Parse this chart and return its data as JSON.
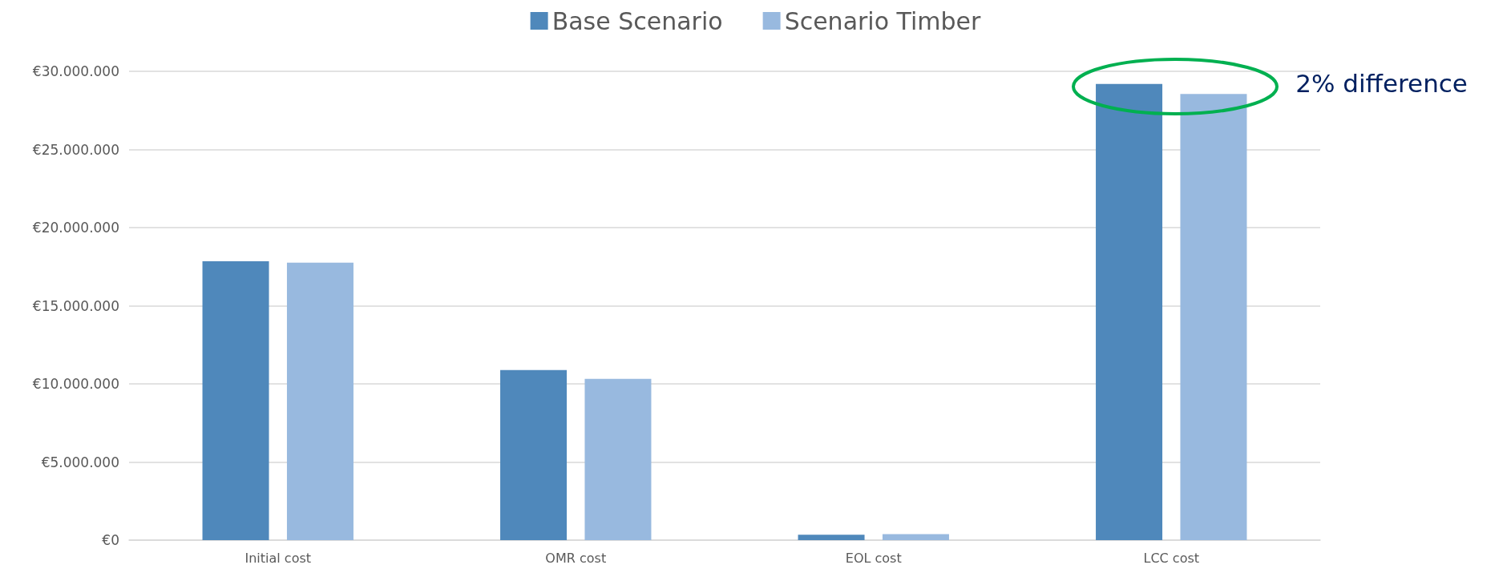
{
  "chart_data": {
    "type": "bar",
    "categories": [
      "Initial cost",
      "OMR cost",
      "EOL cost",
      "LCC cost"
    ],
    "series": [
      {
        "name": "Base Scenario",
        "color": "#4f88bb",
        "values": [
          17850000,
          10880000,
          350000,
          29190000
        ]
      },
      {
        "name": "Scenario Timber",
        "color": "#98b9df",
        "values": [
          17760000,
          10320000,
          390000,
          28550000
        ]
      }
    ],
    "ylim": [
      0,
      30000000
    ],
    "yticks": [
      {
        "value": 0,
        "label": "€0"
      },
      {
        "value": 5000000,
        "label": "€5.000.000"
      },
      {
        "value": 10000000,
        "label": "€10.000.000"
      },
      {
        "value": 15000000,
        "label": "€15.000.000"
      },
      {
        "value": 20000000,
        "label": "€20.000.000"
      },
      {
        "value": 25000000,
        "label": "€25.000.000"
      },
      {
        "value": 30000000,
        "label": "€30.000.000"
      }
    ],
    "grid": "y",
    "legend": "top",
    "annotations": [
      "2% difference"
    ]
  }
}
